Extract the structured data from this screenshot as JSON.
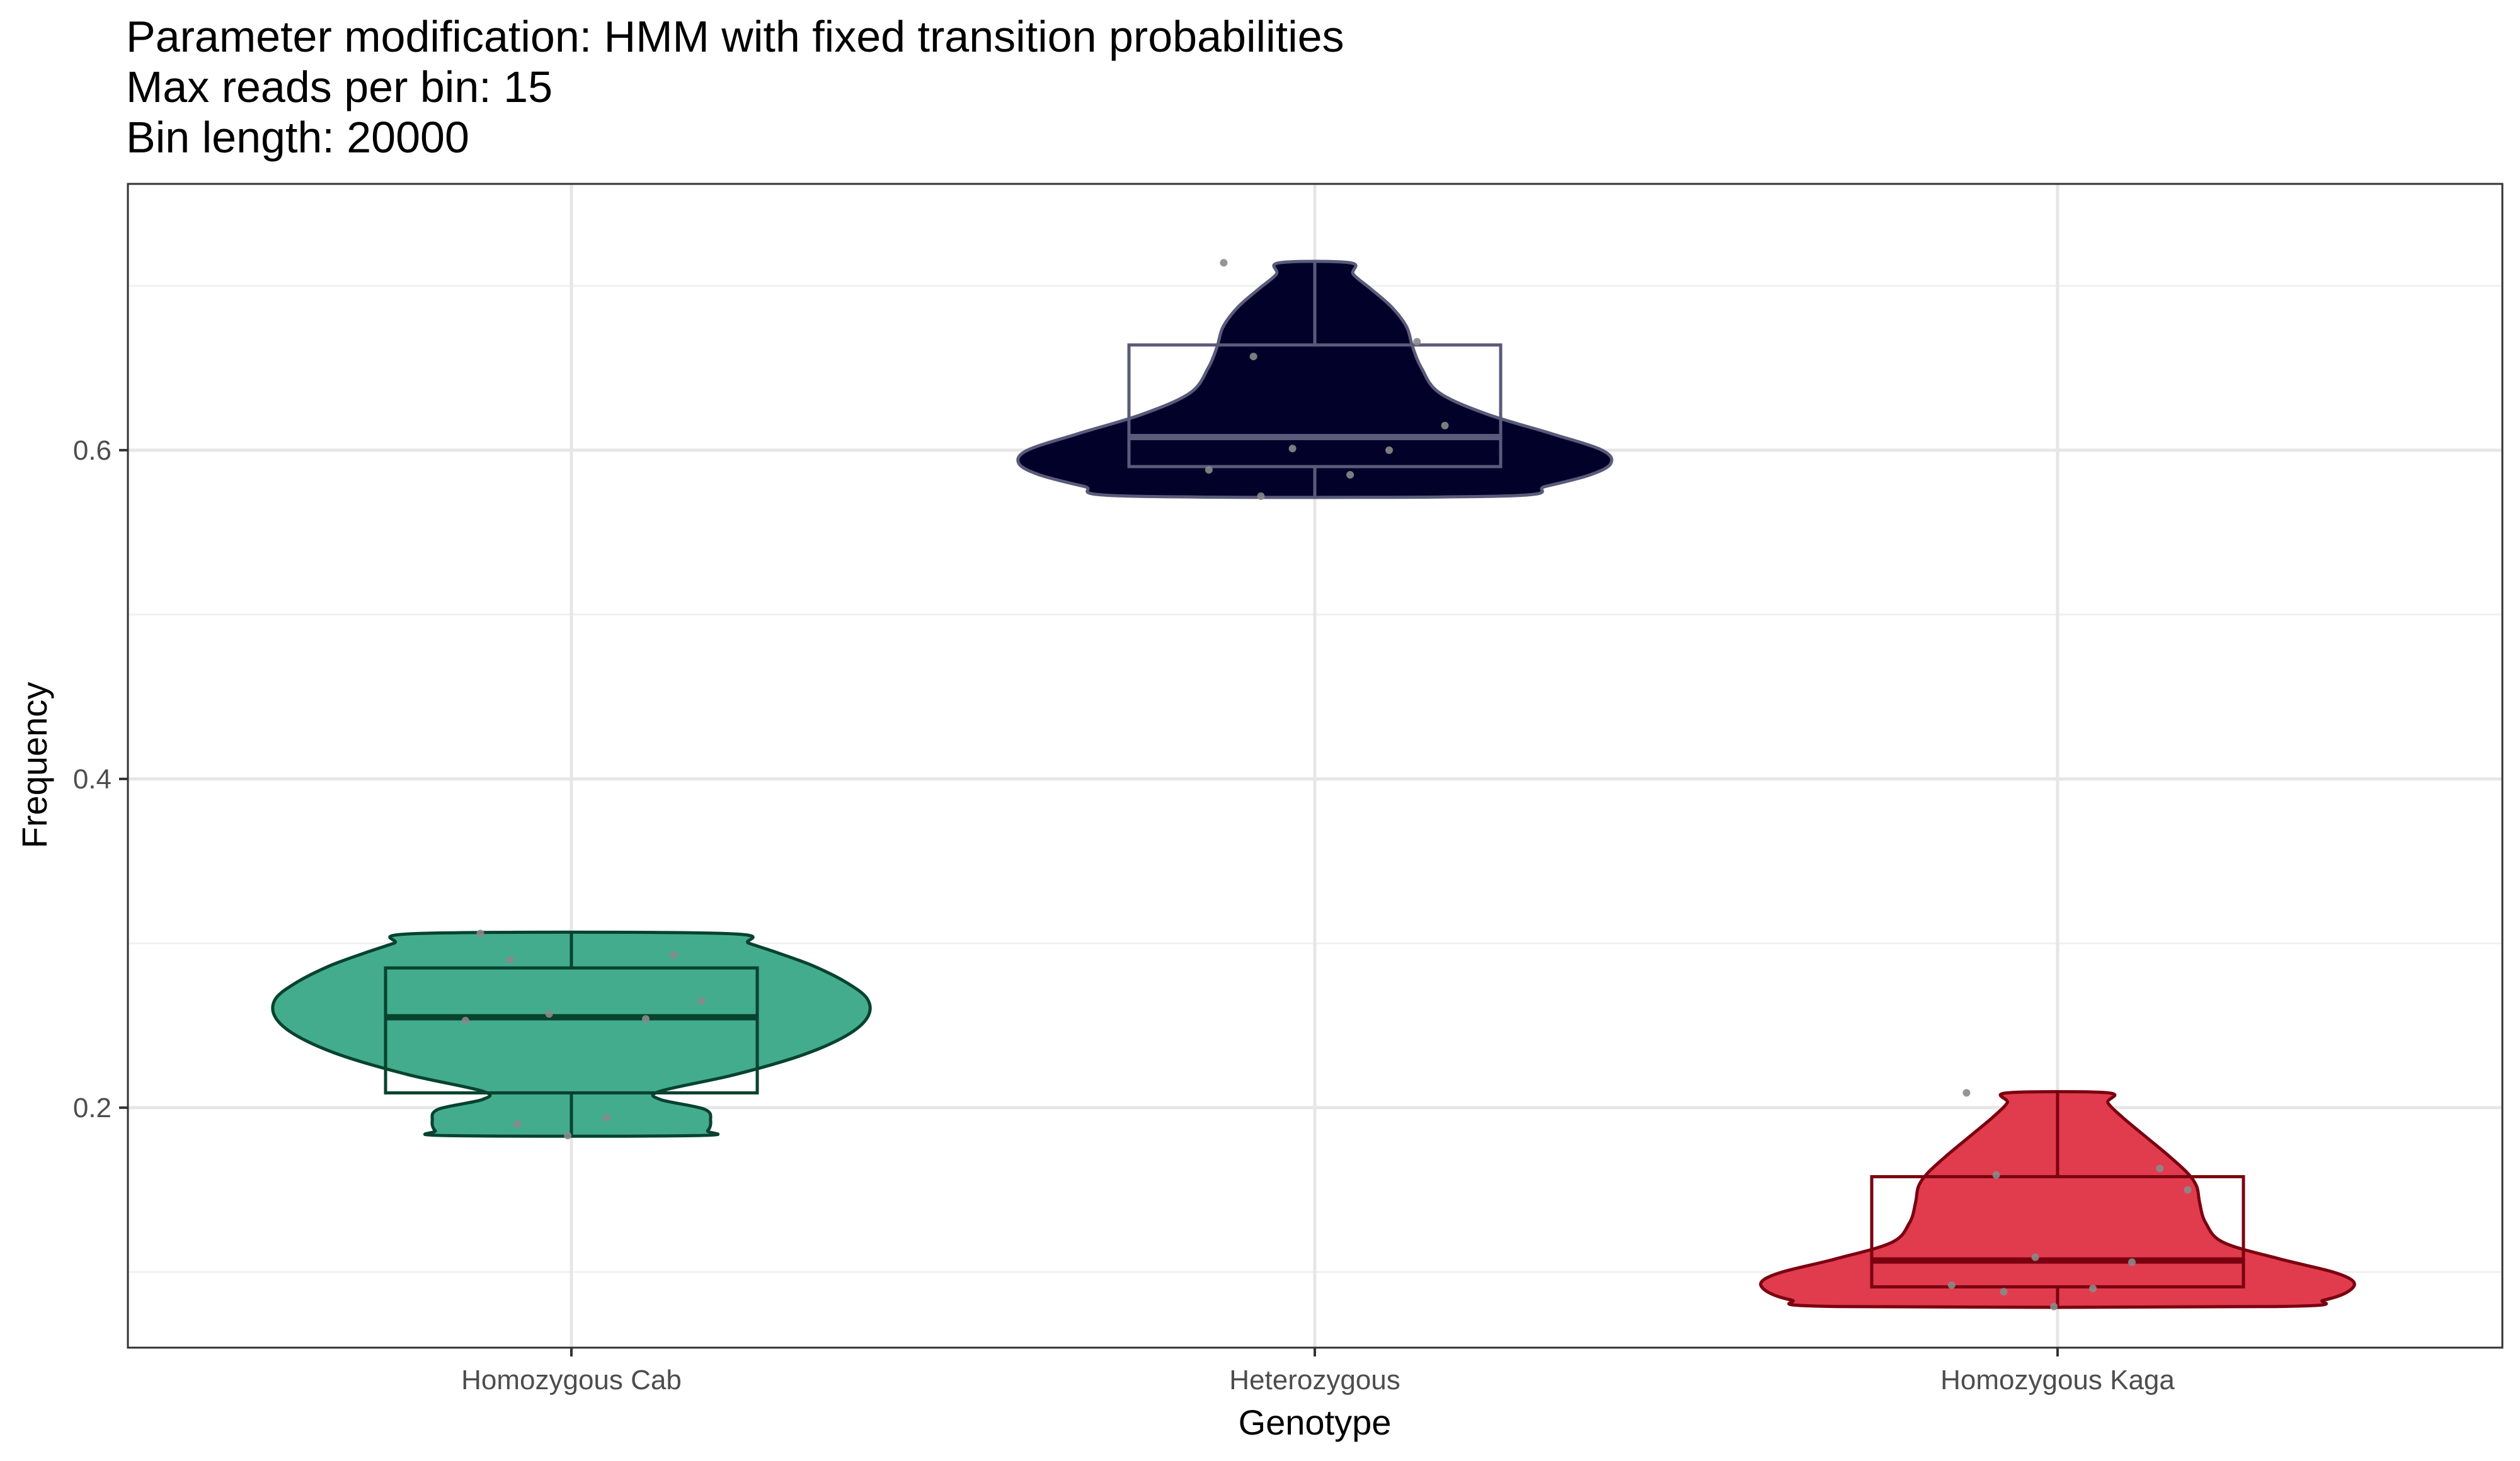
{
  "title_lines": [
    "Parameter modification: HMM with fixed transition probabilities",
    "Max reads per bin: 15",
    "Bin length: 20000"
  ],
  "chart_data": {
    "type": "violin",
    "title": "Parameter modification: HMM with fixed transition probabilities\nMax reads per bin: 15\nBin length: 20000",
    "xlabel": "Genotype",
    "ylabel": "Frequency",
    "categories": [
      "Homozygous Cab",
      "Heterozygous",
      "Homozygous Kaga"
    ],
    "ylim": [
      0.054,
      0.762
    ],
    "yticks": [
      0.2,
      0.4,
      0.6
    ],
    "ytick_labels": [
      "0.2",
      "0.4",
      "0.6"
    ],
    "y_minor_gridlines": [
      0.1,
      0.3,
      0.5,
      0.7
    ],
    "grid": true,
    "legend": "none",
    "series": [
      {
        "category": "Homozygous Cab",
        "fill": "#43AC8D",
        "line": "#07432F",
        "box": {
          "min": 0.183,
          "q1": 0.209,
          "median": 0.255,
          "q3": 0.285,
          "max": 0.306
        },
        "density": [
          [
            0.183,
            0.42
          ],
          [
            0.186,
            0.46
          ],
          [
            0.192,
            0.47
          ],
          [
            0.199,
            0.45
          ],
          [
            0.205,
            0.3
          ],
          [
            0.21,
            0.3
          ],
          [
            0.22,
            0.55
          ],
          [
            0.232,
            0.78
          ],
          [
            0.244,
            0.93
          ],
          [
            0.255,
            1.0
          ],
          [
            0.266,
            1.0
          ],
          [
            0.276,
            0.93
          ],
          [
            0.286,
            0.82
          ],
          [
            0.294,
            0.7
          ],
          [
            0.3,
            0.6
          ],
          [
            0.306,
            0.51
          ]
        ],
        "points": [
          0.306,
          0.293,
          0.29,
          0.265,
          0.257,
          0.254,
          0.253,
          0.194,
          0.19,
          0.183
        ]
      },
      {
        "category": "Heterozygous",
        "fill": "#01012A",
        "line": "#5A5A7A",
        "box": {
          "min": 0.572,
          "q1": 0.59,
          "median": 0.608,
          "q3": 0.664,
          "max": 0.714
        },
        "density": [
          [
            0.572,
            0.62
          ],
          [
            0.578,
            0.78
          ],
          [
            0.585,
            0.93
          ],
          [
            0.592,
            1.0
          ],
          [
            0.6,
            0.97
          ],
          [
            0.61,
            0.8
          ],
          [
            0.622,
            0.58
          ],
          [
            0.635,
            0.42
          ],
          [
            0.65,
            0.36
          ],
          [
            0.663,
            0.33
          ],
          [
            0.675,
            0.31
          ],
          [
            0.687,
            0.26
          ],
          [
            0.698,
            0.19
          ],
          [
            0.707,
            0.13
          ],
          [
            0.714,
            0.12
          ]
        ],
        "points": [
          0.714,
          0.666,
          0.657,
          0.615,
          0.601,
          0.6,
          0.588,
          0.585,
          0.572
        ]
      },
      {
        "category": "Homozygous Kaga",
        "fill": "#E03C4E",
        "line": "#7B0010",
        "box": {
          "min": 0.079,
          "q1": 0.091,
          "median": 0.107,
          "q3": 0.158,
          "max": 0.209
        },
        "density": [
          [
            0.079,
            0.74
          ],
          [
            0.083,
            0.9
          ],
          [
            0.088,
            0.98
          ],
          [
            0.094,
            1.0
          ],
          [
            0.1,
            0.93
          ],
          [
            0.108,
            0.75
          ],
          [
            0.118,
            0.56
          ],
          [
            0.13,
            0.5
          ],
          [
            0.142,
            0.48
          ],
          [
            0.152,
            0.47
          ],
          [
            0.16,
            0.44
          ],
          [
            0.17,
            0.38
          ],
          [
            0.182,
            0.3
          ],
          [
            0.194,
            0.22
          ],
          [
            0.203,
            0.17
          ],
          [
            0.209,
            0.17
          ]
        ],
        "points": [
          0.209,
          0.163,
          0.159,
          0.15,
          0.109,
          0.106,
          0.092,
          0.09,
          0.088,
          0.079
        ]
      }
    ]
  }
}
